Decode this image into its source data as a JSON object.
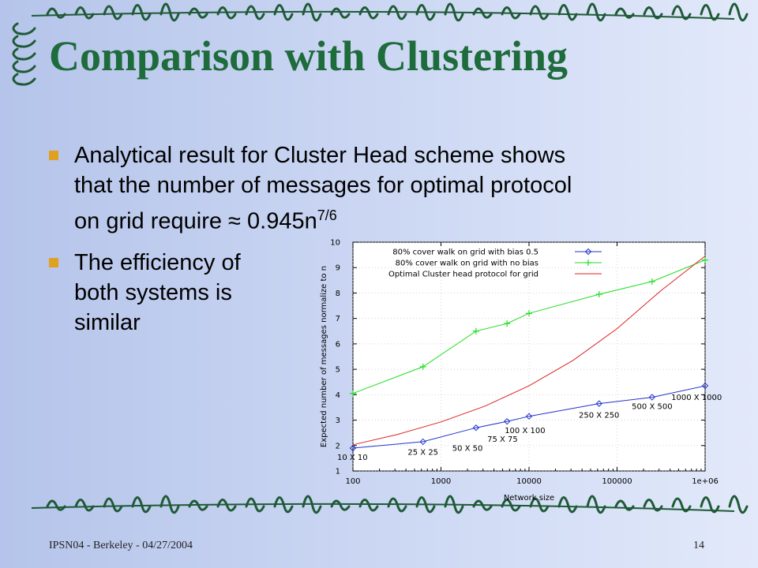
{
  "slide": {
    "title": "Comparison with Clustering",
    "bullet1": {
      "line1": "Analytical result for Cluster Head scheme shows",
      "line2": "that the number of messages for optimal protocol",
      "line3_prefix": "on grid require ≈ 0.945n",
      "line3_sup": "7/6"
    },
    "bullet2": {
      "lines": [
        "The efficiency of",
        "both systems is",
        "similar"
      ]
    },
    "footer_left": "IPSN04 - Berkeley - 04/27/2004",
    "page_number": "14",
    "colors": {
      "title": "#1e6b3c",
      "bullet": "#e0a020",
      "decoration": "#1e5a36"
    }
  },
  "chart_data": {
    "type": "line",
    "xlabel": "Network size",
    "ylabel": "Expected number of messages normalize to n",
    "xscale": "log",
    "xlim": [
      100,
      1000000
    ],
    "ylim": [
      1,
      10
    ],
    "xticks": [
      "100",
      "1000",
      "10000",
      "100000",
      "1e+06"
    ],
    "yticks": [
      "1",
      "2",
      "3",
      "4",
      "5",
      "6",
      "7",
      "8",
      "9",
      "10"
    ],
    "grid": true,
    "legend_position": "top-left",
    "series": [
      {
        "name": "80% cover walk on grid with bias 0.5",
        "color": "#2233cc",
        "marker": "diamond",
        "x": [
          100,
          625,
          2500,
          5625,
          10000,
          62500,
          250000,
          1000000
        ],
        "y": [
          1.9,
          2.15,
          2.7,
          2.95,
          3.15,
          3.65,
          3.9,
          4.35
        ]
      },
      {
        "name": "80% cover walk on grid with no bias",
        "color": "#22dd22",
        "marker": "plus",
        "x": [
          100,
          625,
          2500,
          5625,
          10000,
          62500,
          250000,
          1000000
        ],
        "y": [
          4.05,
          5.1,
          6.5,
          6.8,
          7.2,
          7.95,
          8.45,
          9.3
        ]
      },
      {
        "name": "Optimal Cluster head protocol for grid",
        "color": "#dd2222",
        "marker": "none",
        "curve": "0.945n^(1/6) * 0.945n^? ",
        "x": [
          100,
          316,
          1000,
          3162,
          10000,
          31623,
          100000,
          316228,
          1000000
        ],
        "y": [
          2.03,
          2.43,
          2.93,
          3.55,
          4.35,
          5.35,
          6.6,
          8.1,
          9.45
        ]
      }
    ],
    "annotations": [
      {
        "text": "10 X 10",
        "x": 100,
        "y": 1.55
      },
      {
        "text": "25 X 25",
        "x": 625,
        "y": 1.75
      },
      {
        "text": "50 X 50",
        "x": 2000,
        "y": 1.9
      },
      {
        "text": "75 X 75",
        "x": 5000,
        "y": 2.25
      },
      {
        "text": "100 X 100",
        "x": 9000,
        "y": 2.6
      },
      {
        "text": "250 X 250",
        "x": 62500,
        "y": 3.2
      },
      {
        "text": "500 X 500",
        "x": 250000,
        "y": 3.55
      },
      {
        "text": "1000 X 1000",
        "x": 800000,
        "y": 3.9
      }
    ]
  }
}
